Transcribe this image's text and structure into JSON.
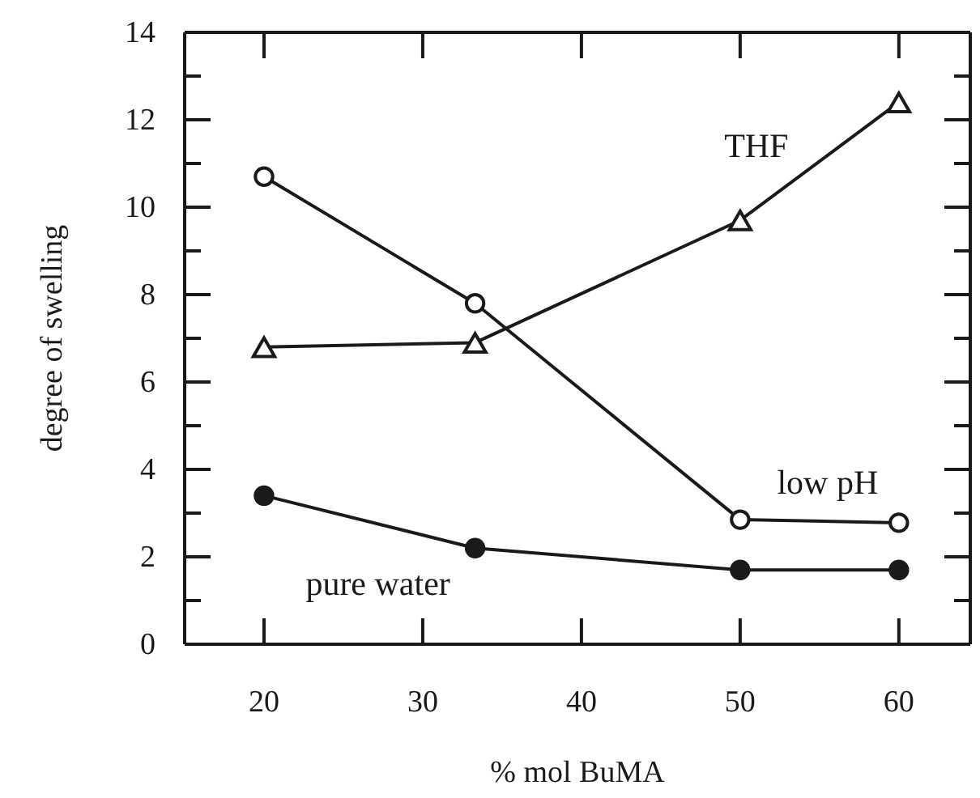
{
  "chart_data": {
    "type": "line",
    "xlabel": "% mol BuMA",
    "ylabel": "degree of swelling",
    "x": [
      20,
      33.3,
      50,
      60
    ],
    "xlim": [
      15,
      64.5
    ],
    "xticks": [
      20,
      30,
      40,
      50,
      60
    ],
    "ylim": [
      0,
      14
    ],
    "yticks": [
      0,
      {
        "value": 1,
        "label": null
      },
      2,
      {
        "value": 3,
        "label": null
      },
      4,
      {
        "value": 5,
        "label": null
      },
      6,
      {
        "value": 7,
        "label": null
      },
      8,
      {
        "value": 9,
        "label": null
      },
      10,
      {
        "value": 11,
        "label": null
      },
      12,
      {
        "value": 13,
        "label": null
      },
      14
    ],
    "grid": false,
    "line_style": "solid",
    "series": [
      {
        "name": "low pH",
        "color": "#1a1a1a",
        "marker": "circle",
        "values": [
          10.7,
          7.8,
          2.85,
          2.78
        ]
      },
      {
        "name": "THF",
        "color": "#1a1a1a",
        "marker": "triangle",
        "values": [
          6.8,
          6.9,
          9.7,
          12.4
        ]
      },
      {
        "name": "pure water",
        "color": "#1a1a1a",
        "marker": "circle",
        "values": [
          3.4,
          2.2,
          1.7,
          1.7
        ]
      }
    ]
  }
}
